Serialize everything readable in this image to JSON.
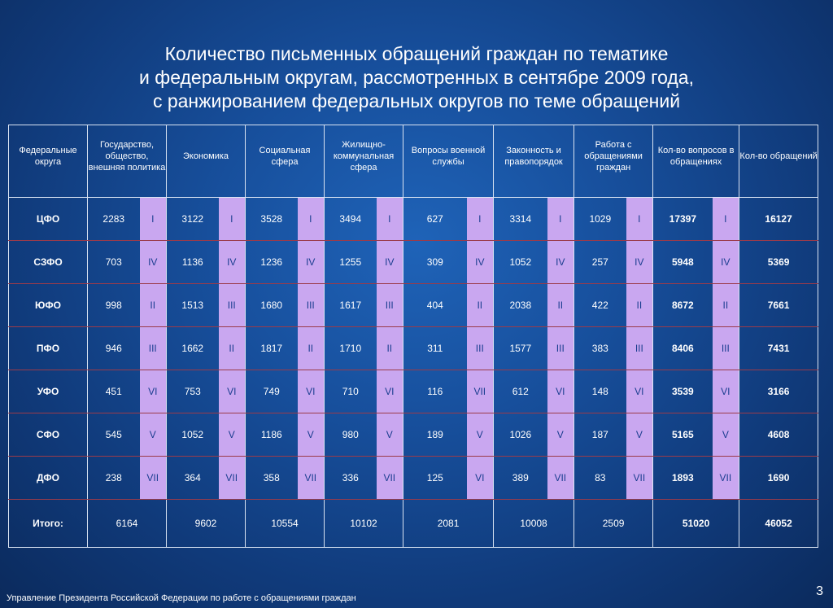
{
  "title": {
    "line1": "Количество письменных обращений граждан по тематике",
    "line2": "и федеральным округам, рассмотренных в сентябре 2009 года,",
    "line3": "с ранжированием федеральных округов по теме обращений"
  },
  "headers": [
    "Федеральные округа",
    "Государство, общество, внешняя политика",
    "Экономика",
    "Социальная сфера",
    "Жилищно-коммунальная сфера",
    "Вопросы военной службы",
    "Законность и правопорядок",
    "Работа с обращениями граждан",
    "Кол-во вопросов в обращениях",
    "Кол-во обращений"
  ],
  "rows": [
    {
      "region": "ЦФО",
      "cells": [
        [
          "2283",
          "I"
        ],
        [
          "3122",
          "I"
        ],
        [
          "3528",
          "I"
        ],
        [
          "3494",
          "I"
        ],
        [
          "627",
          "I"
        ],
        [
          "3314",
          "I"
        ],
        [
          "1029",
          "I"
        ],
        [
          "17397",
          "I"
        ]
      ],
      "total": "16127"
    },
    {
      "region": "СЗФО",
      "cells": [
        [
          "703",
          "IV"
        ],
        [
          "1136",
          "IV"
        ],
        [
          "1236",
          "IV"
        ],
        [
          "1255",
          "IV"
        ],
        [
          "309",
          "IV"
        ],
        [
          "1052",
          "IV"
        ],
        [
          "257",
          "IV"
        ],
        [
          "5948",
          "IV"
        ]
      ],
      "total": "5369"
    },
    {
      "region": "ЮФО",
      "cells": [
        [
          "998",
          "II"
        ],
        [
          "1513",
          "III"
        ],
        [
          "1680",
          "III"
        ],
        [
          "1617",
          "III"
        ],
        [
          "404",
          "II"
        ],
        [
          "2038",
          "II"
        ],
        [
          "422",
          "II"
        ],
        [
          "8672",
          "II"
        ]
      ],
      "total": "7661"
    },
    {
      "region": "ПФО",
      "cells": [
        [
          "946",
          "III"
        ],
        [
          "1662",
          "II"
        ],
        [
          "1817",
          "II"
        ],
        [
          "1710",
          "II"
        ],
        [
          "311",
          "III"
        ],
        [
          "1577",
          "III"
        ],
        [
          "383",
          "III"
        ],
        [
          "8406",
          "III"
        ]
      ],
      "total": "7431"
    },
    {
      "region": "УФО",
      "cells": [
        [
          "451",
          "VI"
        ],
        [
          "753",
          "VI"
        ],
        [
          "749",
          "VI"
        ],
        [
          "710",
          "VI"
        ],
        [
          "116",
          "VII"
        ],
        [
          "612",
          "VI"
        ],
        [
          "148",
          "VI"
        ],
        [
          "3539",
          "VI"
        ]
      ],
      "total": "3166"
    },
    {
      "region": "СФО",
      "cells": [
        [
          "545",
          "V"
        ],
        [
          "1052",
          "V"
        ],
        [
          "1186",
          "V"
        ],
        [
          "980",
          "V"
        ],
        [
          "189",
          "V"
        ],
        [
          "1026",
          "V"
        ],
        [
          "187",
          "V"
        ],
        [
          "5165",
          "V"
        ]
      ],
      "total": "4608"
    },
    {
      "region": "ДФО",
      "cells": [
        [
          "238",
          "VII"
        ],
        [
          "364",
          "VII"
        ],
        [
          "358",
          "VII"
        ],
        [
          "336",
          "VII"
        ],
        [
          "125",
          "VI"
        ],
        [
          "389",
          "VII"
        ],
        [
          "83",
          "VII"
        ],
        [
          "1893",
          "VII"
        ]
      ],
      "total": "1690"
    }
  ],
  "totals": {
    "label": "Итого:",
    "values": [
      "6164",
      "9602",
      "10554",
      "10102",
      "2081",
      "10008",
      "2509",
      "51020"
    ],
    "total": "46052"
  },
  "footer": "Управление Президента Российской Федерации по работе с обращениями граждан",
  "page_number": "3"
}
